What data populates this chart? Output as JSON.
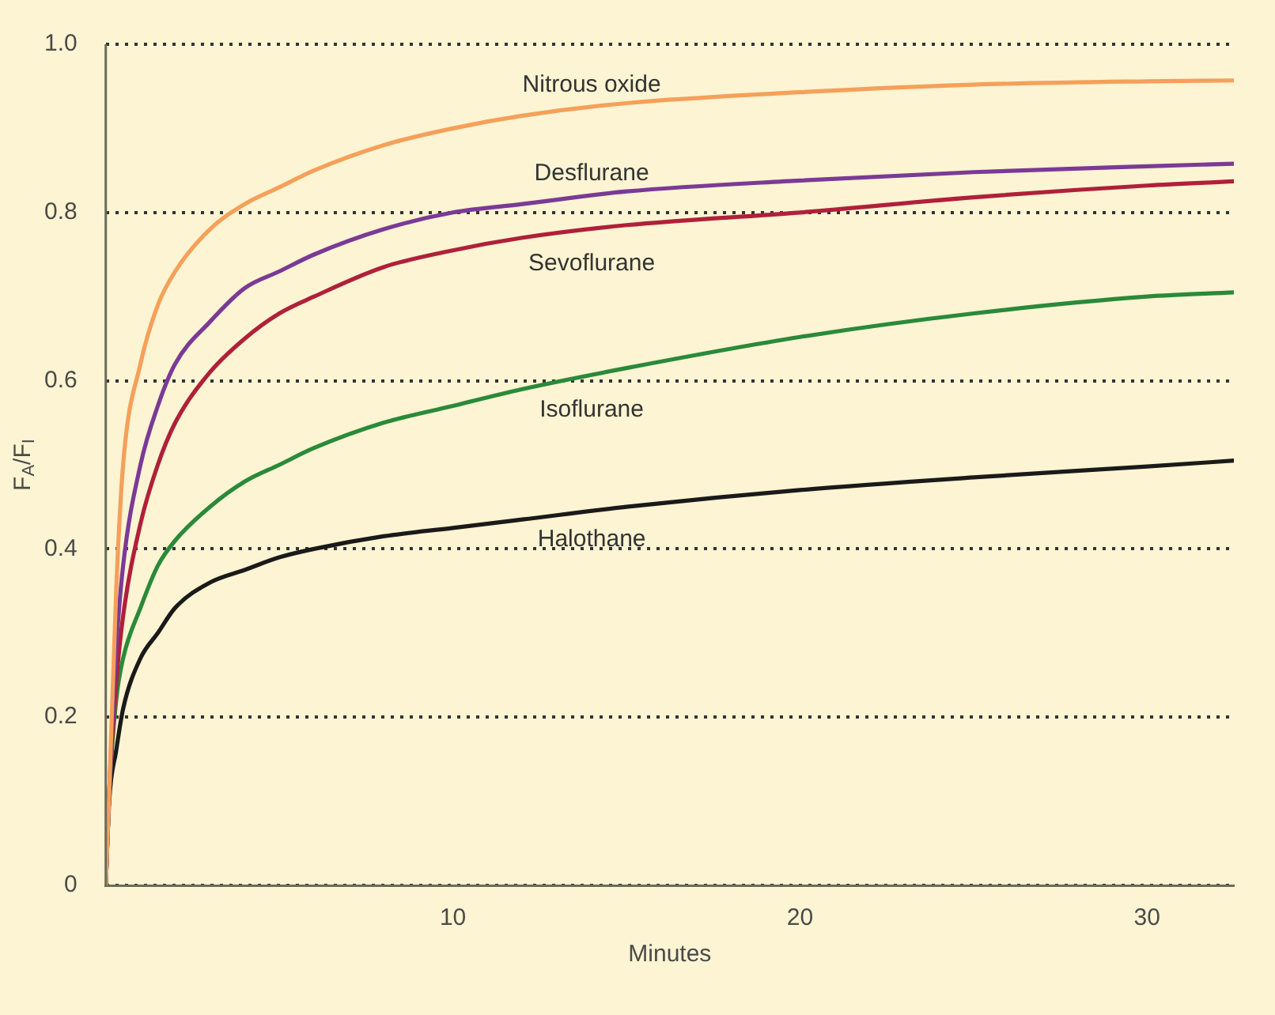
{
  "chart_data": {
    "type": "line",
    "xlabel": "Minutes",
    "ylabel": "F$_{A}$/F$_{I}$",
    "x": [
      0,
      0.1,
      0.3,
      0.5,
      1,
      1.5,
      2,
      3,
      4,
      5,
      6,
      8,
      10,
      12,
      15,
      20,
      25,
      30,
      32.5
    ],
    "series": [
      {
        "name": "Nitrous oxide",
        "color": "#f5a05a",
        "values": [
          0,
          0.11,
          0.35,
          0.5,
          0.62,
          0.69,
          0.73,
          0.78,
          0.81,
          0.83,
          0.85,
          0.88,
          0.9,
          0.915,
          0.93,
          0.943,
          0.952,
          0.956,
          0.957
        ]
      },
      {
        "name": "Desflurane",
        "color": "#7b3a96",
        "values": [
          0,
          0.11,
          0.28,
          0.38,
          0.5,
          0.57,
          0.62,
          0.67,
          0.71,
          0.73,
          0.75,
          0.78,
          0.8,
          0.81,
          0.825,
          0.838,
          0.848,
          0.855,
          0.858
        ]
      },
      {
        "name": "Sevoflurane",
        "color": "#b0203a",
        "values": [
          0,
          0.11,
          0.24,
          0.32,
          0.43,
          0.5,
          0.55,
          0.61,
          0.65,
          0.68,
          0.7,
          0.735,
          0.755,
          0.77,
          0.785,
          0.8,
          0.818,
          0.832,
          0.837
        ]
      },
      {
        "name": "Isoflurane",
        "color": "#2a8a3a",
        "values": [
          0,
          0.11,
          0.22,
          0.27,
          0.33,
          0.38,
          0.41,
          0.45,
          0.48,
          0.5,
          0.52,
          0.55,
          0.57,
          0.59,
          0.615,
          0.652,
          0.68,
          0.7,
          0.705
        ]
      },
      {
        "name": "Halothane",
        "color": "#1a1a1a",
        "values": [
          0,
          0.1,
          0.16,
          0.21,
          0.27,
          0.3,
          0.33,
          0.36,
          0.375,
          0.39,
          0.4,
          0.415,
          0.425,
          0.435,
          0.45,
          0.47,
          0.485,
          0.498,
          0.505
        ]
      }
    ],
    "xlim": [
      0,
      32.5
    ],
    "xticks": [
      10,
      20,
      30
    ],
    "ylim": [
      0,
      1
    ],
    "yticks": [
      0,
      0.2,
      0.4,
      0.6,
      0.8,
      {
        "value": 1,
        "label": "1.0"
      }
    ],
    "grid": "y",
    "legend": false,
    "marker": "none",
    "line_style": "solid"
  }
}
